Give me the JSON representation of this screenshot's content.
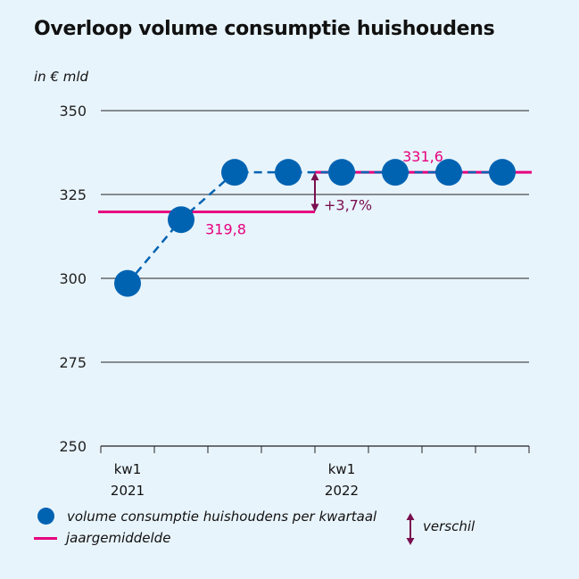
{
  "chart_data": {
    "type": "line",
    "title": "Overloop volume consumptie huishoudens",
    "ylabel": "in € mld",
    "ylim": [
      250,
      350
    ],
    "yticks": [
      250,
      275,
      300,
      325,
      350
    ],
    "grid": true,
    "x_labels": [
      {
        "line1": "kw1",
        "line2": "2021"
      },
      {
        "line1": "kw1",
        "line2": "2022"
      }
    ],
    "series": [
      {
        "name": "volume consumptie huishoudens per kwartaal",
        "color": "#0063b2",
        "values": [
          298.5,
          317.5,
          331.6,
          331.6,
          331.6,
          331.6,
          331.6,
          331.6
        ]
      }
    ],
    "averages": [
      {
        "label": "319,8",
        "value": 319.8,
        "year": "2021",
        "color": "#e6007e"
      },
      {
        "label": "331,6",
        "value": 331.6,
        "year": "2022",
        "color": "#e6007e"
      }
    ],
    "difference": {
      "label": "+3,7%",
      "color": "#7a0f50"
    },
    "legend": [
      {
        "type": "dot",
        "label": "volume consumptie huishoudens per kwartaal"
      },
      {
        "type": "line",
        "label": "jaargemiddelde"
      },
      {
        "type": "arrow",
        "label": "verschil"
      }
    ]
  }
}
